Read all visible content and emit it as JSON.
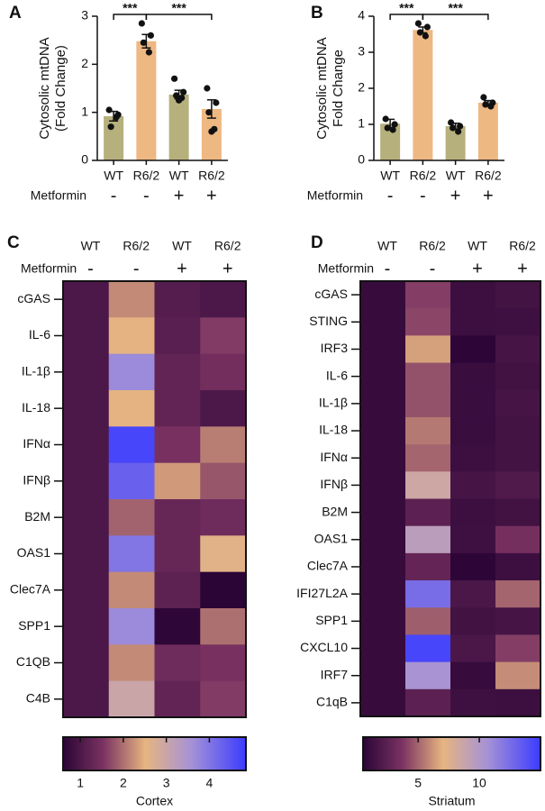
{
  "chart_data": [
    {
      "type": "bar",
      "panel": "A",
      "ylabel": [
        "Cytosolic mtDNA",
        "(Fold Change)"
      ],
      "categories": [
        "WT",
        "R6/2",
        "WT",
        "R6/2"
      ],
      "values": [
        0.92,
        2.48,
        1.37,
        1.07
      ],
      "errors": [
        0.1,
        0.14,
        0.09,
        0.19
      ],
      "points": [
        [
          1.05,
          0.95,
          0.7,
          0.9
        ],
        [
          2.85,
          2.6,
          2.45,
          2.25
        ],
        [
          1.7,
          1.42,
          1.35,
          1.3,
          1.25
        ],
        [
          1.5,
          1.2,
          1.0,
          0.65,
          0.6
        ]
      ],
      "colors": [
        "#b6b07c",
        "#eeb883",
        "#b6b07c",
        "#eeb883"
      ],
      "ylim": [
        0,
        3
      ],
      "yticks": [
        0,
        1,
        2,
        3
      ],
      "row_label": "Metformin",
      "row_values": [
        "-",
        "-",
        "+",
        "+"
      ],
      "significance": [
        {
          "pair": [
            0,
            1
          ],
          "label": "***"
        },
        {
          "pair": [
            1,
            3
          ],
          "label": "***"
        }
      ]
    },
    {
      "type": "bar",
      "panel": "B",
      "ylabel": [
        "Cytosolic mtDNA",
        "Fold Change"
      ],
      "categories": [
        "WT",
        "R6/2",
        "WT",
        "R6/2"
      ],
      "values": [
        1.02,
        3.62,
        0.95,
        1.6
      ],
      "errors": [
        0.12,
        0.08,
        0.08,
        0.06
      ],
      "points": [
        [
          1.15,
          1.0,
          0.9,
          0.85
        ],
        [
          3.8,
          3.7,
          3.55,
          3.45
        ],
        [
          1.05,
          0.95,
          0.9,
          0.8
        ],
        [
          1.75,
          1.6,
          1.55,
          1.5
        ]
      ],
      "colors": [
        "#b6b07c",
        "#eeb883",
        "#b6b07c",
        "#eeb883"
      ],
      "ylim": [
        0,
        4
      ],
      "yticks": [
        0,
        1,
        2,
        3,
        4
      ],
      "row_label": "Metformin",
      "row_values": [
        "-",
        "-",
        "+",
        "+"
      ],
      "significance": [
        {
          "pair": [
            0,
            1
          ],
          "label": "***"
        },
        {
          "pair": [
            1,
            3
          ],
          "label": "***"
        }
      ]
    },
    {
      "type": "heatmap",
      "panel": "C",
      "columns": [
        "WT",
        "R6/2",
        "WT",
        "R6/2"
      ],
      "row_label": "Metformin",
      "row_values": [
        "-",
        "-",
        "+",
        "+"
      ],
      "rows": [
        "cGAS",
        "IL-6",
        "IL-1β",
        "IL-18",
        "IFNα",
        "IFNβ",
        "B2M",
        "OAS1",
        "Clec7A",
        "SPP1",
        "C1QB",
        "C4B"
      ],
      "values": [
        [
          1,
          2.2,
          1.1,
          1.0
        ],
        [
          1,
          2.5,
          1.15,
          1.6
        ],
        [
          1,
          3.7,
          1.25,
          1.45
        ],
        [
          1,
          2.5,
          1.25,
          1.0
        ],
        [
          1,
          4.7,
          1.5,
          2.1
        ],
        [
          1,
          4.3,
          2.3,
          1.8
        ],
        [
          1,
          1.9,
          1.3,
          1.4
        ],
        [
          1,
          4.0,
          1.3,
          2.6
        ],
        [
          1,
          2.2,
          1.2,
          0.6
        ],
        [
          1,
          3.7,
          0.65,
          2.0
        ],
        [
          1,
          2.2,
          1.4,
          1.5
        ],
        [
          1,
          3.0,
          1.25,
          1.6
        ]
      ],
      "clim": [
        0.6,
        4.85
      ],
      "cticks": [
        1,
        2,
        3,
        4
      ],
      "colorbar_label": "Cortex",
      "colormap": [
        [
          0,
          "#2a0536"
        ],
        [
          0.22,
          "#7a3262"
        ],
        [
          0.45,
          "#e6b581"
        ],
        [
          0.7,
          "#a692d6"
        ],
        [
          1,
          "#3b3cff"
        ]
      ]
    },
    {
      "type": "heatmap",
      "panel": "D",
      "columns": [
        "WT",
        "R6/2",
        "WT",
        "R6/2"
      ],
      "row_label": "Metformin",
      "row_values": [
        "-",
        "-",
        "+",
        "+"
      ],
      "rows": [
        "cGAS",
        "STING",
        "IRF3",
        "IL-6",
        "IL-1β",
        "IL-18",
        "IFNα",
        "IFNβ",
        "B2M",
        "OAS1",
        "Clec7A",
        "IFI27L2A",
        "SPP1",
        "CXCL10",
        "IRF7",
        "C1qB"
      ],
      "values": [
        [
          1,
          4,
          1.2,
          1.5
        ],
        [
          1,
          4.2,
          1.2,
          1.3
        ],
        [
          1,
          6.5,
          0.6,
          1.6
        ],
        [
          1,
          4.5,
          1.1,
          1.4
        ],
        [
          1,
          4.5,
          1.1,
          1.6
        ],
        [
          1,
          5.5,
          1.1,
          1.5
        ],
        [
          1,
          5,
          1.2,
          1.5
        ],
        [
          1,
          8.5,
          1.6,
          2
        ],
        [
          1,
          2.5,
          1.2,
          1.4
        ],
        [
          1,
          9.5,
          1.3,
          3.5
        ],
        [
          1,
          2.8,
          0.6,
          1.2
        ],
        [
          1,
          12.5,
          1.8,
          5
        ],
        [
          1,
          4.8,
          1.4,
          1.6
        ],
        [
          1,
          14.5,
          1.8,
          4
        ],
        [
          1,
          10.5,
          1.0,
          6
        ],
        [
          1,
          2.5,
          1.3,
          1.2
        ]
      ],
      "clim": [
        0.5,
        15
      ],
      "cticks": [
        5,
        10
      ],
      "colorbar_label": "Striatum",
      "colormap": [
        [
          0,
          "#2a0536"
        ],
        [
          0.22,
          "#7a3262"
        ],
        [
          0.45,
          "#e6b581"
        ],
        [
          0.7,
          "#a692d6"
        ],
        [
          1,
          "#3b3cff"
        ]
      ]
    }
  ]
}
